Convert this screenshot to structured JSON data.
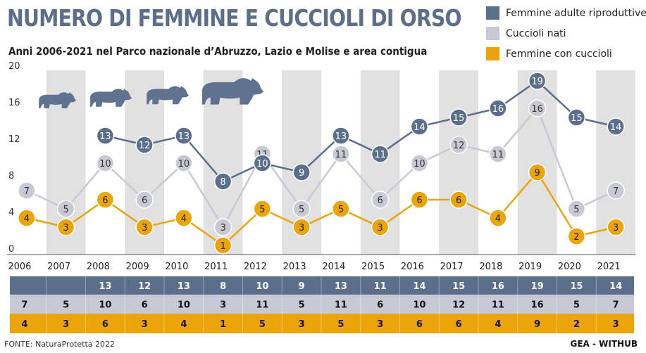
{
  "header": {
    "title": "NUMERO DI FEMMINE E CUCCIOLI DI ORSO",
    "subtitle": "Anni 2006-2021 nel Parco nazionale d’Abruzzo, Lazio e Molise e area contigua"
  },
  "colors": {
    "femmine_adulte": "#5b6f8c",
    "cuccioli_nati": "#c7cad4",
    "femmine_con_cuccioli": "#eba50a",
    "band": "#e1e1e1",
    "bear": "#5f7390"
  },
  "footer": {
    "source": "FONTE: NaturaProtetta 2022",
    "credit": "GEA - WITHUB"
  },
  "chart_data": {
    "type": "line",
    "x": [
      "2006",
      "2007",
      "2008",
      "2009",
      "2010",
      "2011",
      "2012",
      "2013",
      "2014",
      "2015",
      "2016",
      "2017",
      "2018",
      "2019",
      "2020",
      "2021"
    ],
    "ylim": [
      0,
      20
    ],
    "yticks": [
      0,
      4,
      8,
      12,
      16,
      20
    ],
    "grid": "alternating vertical bands",
    "legend_position": "top-right",
    "series": [
      {
        "name": "Femmine adulte riproduttive",
        "key": "femmine_adulte",
        "values": [
          null,
          null,
          13,
          12,
          13,
          8,
          10,
          9,
          13,
          11,
          14,
          15,
          16,
          19,
          15,
          14
        ]
      },
      {
        "name": "Cuccioli nati",
        "key": "cuccioli_nati",
        "values": [
          7,
          5,
          10,
          6,
          10,
          3,
          11,
          5,
          11,
          6,
          10,
          12,
          11,
          16,
          5,
          7
        ]
      },
      {
        "name": "Femmine con cuccioli",
        "key": "femmine_con_cuccioli",
        "values": [
          4,
          3,
          6,
          3,
          4,
          1,
          5,
          3,
          5,
          3,
          6,
          6,
          4,
          9,
          2,
          3
        ]
      }
    ]
  }
}
